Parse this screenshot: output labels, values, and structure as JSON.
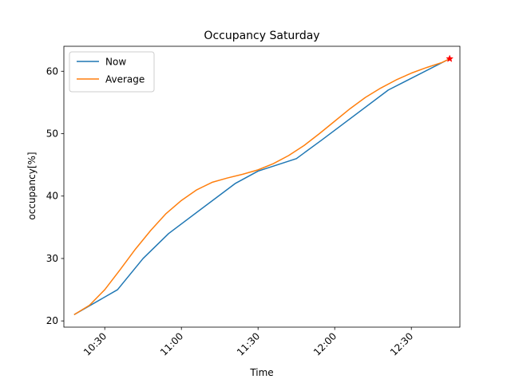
{
  "chart_data": {
    "type": "line",
    "title": "Occupancy Saturday",
    "xlabel": "Time",
    "ylabel": "occupancy[%]",
    "xlim": [
      "10:14",
      "12:49"
    ],
    "ylim": [
      19,
      64
    ],
    "x_ticks": [
      "10:30",
      "11:00",
      "11:30",
      "12:00",
      "12:30"
    ],
    "y_ticks": [
      20,
      30,
      40,
      50,
      60
    ],
    "grid": false,
    "legend_position": "upper-left",
    "series": [
      {
        "name": "Now",
        "color": "#1f77b4",
        "points": [
          [
            "10:18",
            21
          ],
          [
            "10:35",
            25
          ],
          [
            "10:45",
            30
          ],
          [
            "10:55",
            34
          ],
          [
            "11:21",
            42
          ],
          [
            "11:30",
            44
          ],
          [
            "11:45",
            46
          ],
          [
            "11:55",
            49
          ],
          [
            "12:21",
            57
          ],
          [
            "12:45",
            62
          ]
        ]
      },
      {
        "name": "Average",
        "color": "#ff7f0e",
        "points": [
          [
            "10:18",
            21
          ],
          [
            "10:24",
            22.5
          ],
          [
            "10:30",
            25
          ],
          [
            "10:36",
            28.2
          ],
          [
            "10:42",
            31.5
          ],
          [
            "10:48",
            34.5
          ],
          [
            "10:54",
            37.2
          ],
          [
            "11:00",
            39.3
          ],
          [
            "11:06",
            41
          ],
          [
            "11:12",
            42.2
          ],
          [
            "11:18",
            42.9
          ],
          [
            "11:24",
            43.5
          ],
          [
            "11:30",
            44.2
          ],
          [
            "11:36",
            45.2
          ],
          [
            "11:42",
            46.5
          ],
          [
            "11:48",
            48.1
          ],
          [
            "11:54",
            50
          ],
          [
            "12:00",
            52
          ],
          [
            "12:06",
            54
          ],
          [
            "12:12",
            55.8
          ],
          [
            "12:18",
            57.3
          ],
          [
            "12:24",
            58.6
          ],
          [
            "12:30",
            59.7
          ],
          [
            "12:36",
            60.6
          ],
          [
            "12:42",
            61.4
          ],
          [
            "12:45",
            62
          ]
        ]
      }
    ],
    "markers": [
      {
        "x": "12:45",
        "y": 62,
        "symbol": "star",
        "color": "#ff0000"
      }
    ]
  }
}
